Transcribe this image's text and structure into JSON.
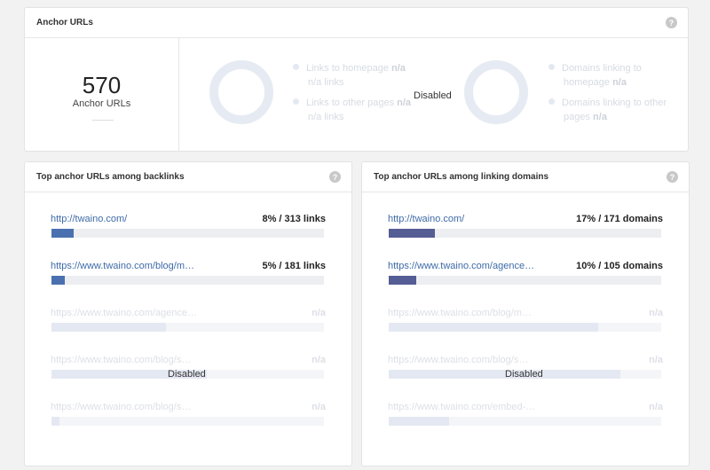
{
  "anchor_card": {
    "title": "Anchor URLs",
    "help": "?",
    "summary": {
      "number": "570",
      "label": "Anchor URLs"
    },
    "chart1": {
      "legend": [
        {
          "text": "Links to homepage",
          "value": "n/a",
          "sub": "n/a links"
        },
        {
          "text": "Links to other pages",
          "value": "n/a",
          "sub": "n/a links"
        }
      ]
    },
    "disabled": "Disabled",
    "chart2": {
      "legend": [
        {
          "text1": "Domains linking to",
          "text2": "homepage",
          "value": "n/a"
        },
        {
          "text1": "Domains linking to other",
          "text2": "pages",
          "value": "n/a"
        }
      ]
    }
  },
  "backlinks_card": {
    "title": "Top anchor URLs among backlinks",
    "help": "?",
    "disabled": "Disabled",
    "bar_color": "#4a70b0",
    "rows": [
      {
        "url": "http://twaino.com/",
        "value": "8% / 313 links",
        "percent": 8,
        "dim": false
      },
      {
        "url": "https://www.twaino.com/blog/m…",
        "value": "5% / 181 links",
        "percent": 5,
        "dim": false
      },
      {
        "url": "https://www.twaino.com/agence…",
        "value": "n/a",
        "percent": 42,
        "dim": true
      },
      {
        "url": "https://www.twaino.com/blog/s…",
        "value": "n/a",
        "percent": 57,
        "dim": true
      },
      {
        "url": "https://www.twaino.com/blog/s…",
        "value": "n/a",
        "percent": 3,
        "dim": true
      }
    ]
  },
  "domains_card": {
    "title": "Top anchor URLs among linking domains",
    "help": "?",
    "disabled": "Disabled",
    "bar_color": "#545d94",
    "rows": [
      {
        "url": "http://twaino.com/",
        "value": "17% / 171 domains",
        "percent": 17,
        "dim": false
      },
      {
        "url": "https://www.twaino.com/agence…",
        "value": "10% / 105 domains",
        "percent": 10,
        "dim": false
      },
      {
        "url": "https://www.twaino.com/blog/m…",
        "value": "n/a",
        "percent": 77,
        "dim": true
      },
      {
        "url": "https://www.twaino.com/blog/s…",
        "value": "n/a",
        "percent": 85,
        "dim": true
      },
      {
        "url": "https://www.twaino.com/embed-…",
        "value": "n/a",
        "percent": 22,
        "dim": true
      }
    ]
  }
}
